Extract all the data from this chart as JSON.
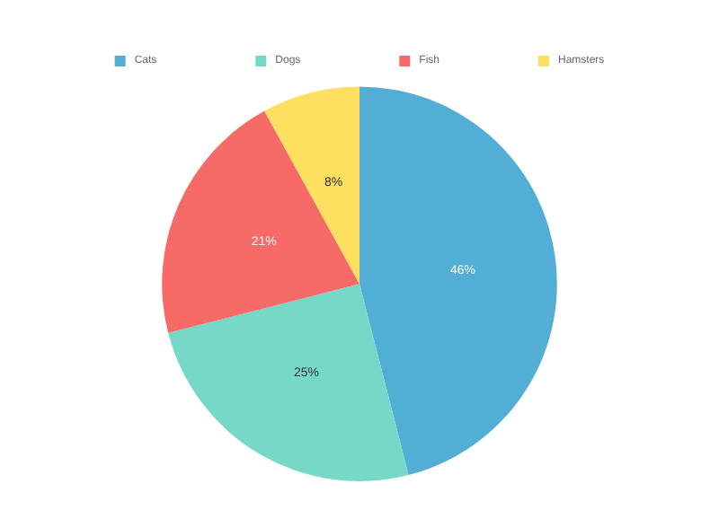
{
  "chart_data": {
    "type": "pie",
    "categories": [
      "Cats",
      "Dogs",
      "Fish",
      "Hamsters"
    ],
    "values": [
      46,
      25,
      21,
      8
    ],
    "colors": [
      "#53aed6",
      "#76d9c8",
      "#f66b67",
      "#ffdf5f"
    ],
    "value_labels": [
      "46%",
      "25%",
      "21%",
      "8%"
    ],
    "legend": "top"
  }
}
